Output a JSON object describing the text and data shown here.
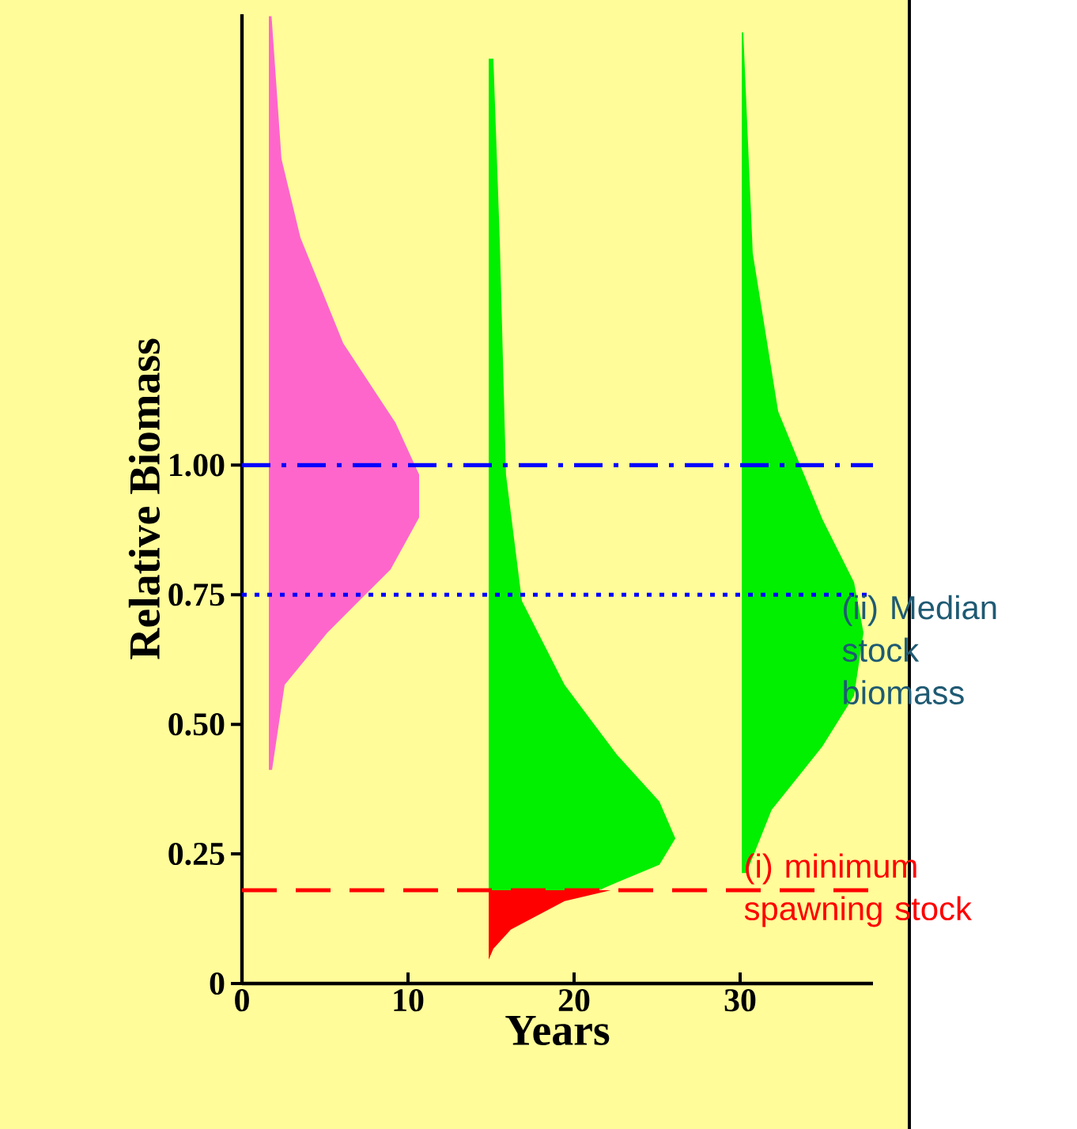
{
  "chart_data": {
    "type": "area",
    "xlabel": "Years",
    "ylabel": "Relative Biomass",
    "xlim": [
      0,
      38
    ],
    "xticks": [
      0,
      10,
      20,
      30
    ],
    "ylim": [
      0,
      1.87
    ],
    "yticks": [
      0,
      0.25,
      {
        "value": 0.5,
        "label": "0.50"
      },
      {
        "value": 0.75,
        "label": "0.75"
      },
      {
        "value": 1.0,
        "label": "1.00"
      }
    ],
    "grid": false,
    "series": [
      {
        "color": "#ff66cc",
        "x": [
          1.62,
          1.78,
          2.38,
          3.52,
          6.1,
          9.24,
          10.67,
          10.67,
          8.95,
          5.14,
          2.57,
          1.81,
          1.62
        ],
        "values": [
          1.866,
          1.866,
          1.591,
          1.439,
          1.235,
          1.082,
          0.982,
          0.899,
          0.799,
          0.677,
          0.576,
          0.412,
          0.412
        ]
      },
      {
        "color": "#00f000",
        "x": [
          14.86,
          15.14,
          15.52,
          15.9,
          16.86,
          19.43,
          22.57,
          25.14,
          26.1,
          25.14,
          22.57,
          21.5,
          14.86
        ],
        "values": [
          1.784,
          1.784,
          1.439,
          0.982,
          0.738,
          0.576,
          0.442,
          0.351,
          0.28,
          0.229,
          0.195,
          0.18,
          0.18
        ]
      },
      {
        "color": "#ff0000",
        "x": [
          14.86,
          22.2,
          19.43,
          16.19,
          15.14,
          14.86
        ],
        "values": [
          0.18,
          0.18,
          0.159,
          0.104,
          0.067,
          0.046
        ]
      },
      {
        "color": "#00f000",
        "x": [
          30.1,
          30.19,
          30.76,
          32.29,
          34.95,
          36.86,
          37.43,
          36.86,
          34.95,
          31.9,
          30.38,
          30.1
        ],
        "values": [
          1.835,
          1.835,
          1.409,
          1.104,
          0.896,
          0.774,
          0.677,
          0.555,
          0.457,
          0.335,
          0.213,
          0.213
        ]
      }
    ],
    "ref_lines": [
      {
        "axis": "y",
        "value": 1.0,
        "color": "#0000ff",
        "line_style": "dashdot"
      },
      {
        "axis": "y",
        "value": 0.75,
        "color": "#0000ff",
        "line_style": "dotted"
      },
      {
        "axis": "y",
        "value": 0.18,
        "color": "#ff0000",
        "line_style": "dashed"
      }
    ],
    "annotations": [
      {
        "text": "(ii) Median stock biomass",
        "x": 36.1,
        "y": 0.75
      },
      {
        "text": "(i) minimum spawning stock",
        "x": 30.2,
        "y": 0.18
      }
    ]
  }
}
